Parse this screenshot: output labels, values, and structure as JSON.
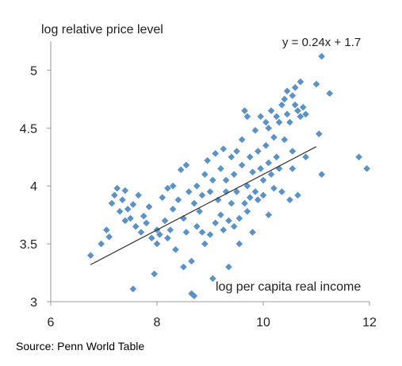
{
  "chart_data": {
    "type": "scatter",
    "ylabel": "log relative price level",
    "xlabel": "log per capita real income",
    "equation": "y = 0.24x + 1.7",
    "source": "Source: Penn World Table",
    "xlim": [
      6,
      12
    ],
    "ylim": [
      3,
      5.25
    ],
    "x_ticks": [
      6,
      8,
      10,
      12
    ],
    "x_tick_labels": [
      "6",
      "8",
      "10",
      "12"
    ],
    "y_ticks": [
      3,
      3.5,
      4,
      4.5,
      5
    ],
    "y_tick_labels": [
      "3",
      "3.5",
      "4",
      "4.5",
      "5"
    ],
    "grid": false,
    "trendline": {
      "slope": 0.24,
      "intercept": 1.7,
      "x_range": [
        6.75,
        11.0
      ],
      "color": "#333333"
    },
    "marker_color": "#5a93c8",
    "points": [
      [
        6.75,
        3.4
      ],
      [
        6.95,
        3.5
      ],
      [
        7.05,
        3.62
      ],
      [
        7.1,
        3.56
      ],
      [
        7.15,
        3.85
      ],
      [
        7.2,
        3.92
      ],
      [
        7.25,
        3.98
      ],
      [
        7.3,
        3.78
      ],
      [
        7.35,
        3.88
      ],
      [
        7.4,
        3.7
      ],
      [
        7.4,
        3.96
      ],
      [
        7.45,
        3.8
      ],
      [
        7.5,
        3.72
      ],
      [
        7.55,
        3.84
      ],
      [
        7.55,
        3.11
      ],
      [
        7.6,
        3.65
      ],
      [
        7.65,
        3.92
      ],
      [
        7.7,
        3.6
      ],
      [
        7.75,
        3.74
      ],
      [
        7.8,
        3.68
      ],
      [
        7.85,
        3.82
      ],
      [
        7.9,
        3.55
      ],
      [
        7.95,
        3.24
      ],
      [
        8.0,
        3.62
      ],
      [
        8.0,
        3.5
      ],
      [
        8.05,
        3.58
      ],
      [
        8.1,
        3.9
      ],
      [
        8.15,
        3.7
      ],
      [
        8.2,
        3.98
      ],
      [
        8.2,
        3.55
      ],
      [
        8.25,
        3.62
      ],
      [
        8.3,
        3.8
      ],
      [
        8.3,
        4.0
      ],
      [
        8.35,
        3.45
      ],
      [
        8.4,
        3.88
      ],
      [
        8.45,
        4.14
      ],
      [
        8.5,
        3.72
      ],
      [
        8.5,
        3.3
      ],
      [
        8.55,
        4.18
      ],
      [
        8.55,
        3.6
      ],
      [
        8.6,
        3.95
      ],
      [
        8.65,
        3.35
      ],
      [
        8.65,
        3.07
      ],
      [
        8.7,
        3.85
      ],
      [
        8.7,
        3.05
      ],
      [
        8.75,
        3.65
      ],
      [
        8.75,
        4.0
      ],
      [
        8.8,
        3.78
      ],
      [
        8.85,
        3.6
      ],
      [
        8.85,
        3.92
      ],
      [
        8.9,
        4.1
      ],
      [
        8.9,
        3.5
      ],
      [
        8.95,
        4.22
      ],
      [
        9.0,
        3.95
      ],
      [
        9.0,
        3.58
      ],
      [
        9.05,
        4.05
      ],
      [
        9.05,
        3.2
      ],
      [
        9.1,
        3.68
      ],
      [
        9.1,
        4.28
      ],
      [
        9.15,
        3.88
      ],
      [
        9.2,
        4.15
      ],
      [
        9.2,
        3.75
      ],
      [
        9.25,
        3.62
      ],
      [
        9.25,
        4.32
      ],
      [
        9.3,
        3.95
      ],
      [
        9.3,
        4.05
      ],
      [
        9.35,
        3.7
      ],
      [
        9.35,
        3.3
      ],
      [
        9.4,
        4.25
      ],
      [
        9.4,
        3.85
      ],
      [
        9.45,
        4.1
      ],
      [
        9.45,
        3.65
      ],
      [
        9.5,
        3.95
      ],
      [
        9.5,
        4.3
      ],
      [
        9.55,
        3.72
      ],
      [
        9.55,
        3.5
      ],
      [
        9.6,
        4.18
      ],
      [
        9.6,
        4.4
      ],
      [
        9.65,
        3.85
      ],
      [
        9.65,
        4.65
      ],
      [
        9.7,
        4.0
      ],
      [
        9.7,
        3.78
      ],
      [
        9.75,
        4.25
      ],
      [
        9.75,
        3.9
      ],
      [
        9.8,
        3.6
      ],
      [
        9.8,
        4.12
      ],
      [
        9.85,
        4.48
      ],
      [
        9.85,
        3.95
      ],
      [
        9.9,
        3.88
      ],
      [
        9.9,
        4.3
      ],
      [
        9.95,
        4.15
      ],
      [
        9.95,
        4.6
      ],
      [
        10.0,
        4.05
      ],
      [
        10.0,
        3.92
      ],
      [
        10.05,
        4.55
      ],
      [
        10.05,
        4.35
      ],
      [
        10.1,
        4.2
      ],
      [
        10.1,
        3.75
      ],
      [
        10.15,
        4.65
      ],
      [
        10.15,
        4.1
      ],
      [
        10.2,
        4.42
      ],
      [
        10.2,
        3.98
      ],
      [
        10.25,
        4.6
      ],
      [
        10.25,
        4.25
      ],
      [
        10.3,
        4.55
      ],
      [
        10.3,
        4.15
      ],
      [
        10.35,
        4.7
      ],
      [
        10.35,
        3.95
      ],
      [
        10.4,
        4.4
      ],
      [
        10.4,
        4.75
      ],
      [
        10.45,
        4.62
      ],
      [
        10.45,
        4.82
      ],
      [
        10.5,
        4.55
      ],
      [
        10.5,
        3.88
      ],
      [
        10.55,
        4.78
      ],
      [
        10.55,
        4.3
      ],
      [
        10.6,
        4.7
      ],
      [
        10.6,
        4.85
      ],
      [
        10.65,
        4.65
      ],
      [
        10.65,
        3.92
      ],
      [
        10.7,
        4.9
      ],
      [
        10.7,
        4.6
      ],
      [
        10.75,
        4.68
      ],
      [
        10.8,
        4.62
      ],
      [
        10.8,
        4.25
      ],
      [
        11.0,
        4.88
      ],
      [
        11.05,
        4.45
      ],
      [
        11.1,
        5.12
      ],
      [
        11.1,
        4.1
      ],
      [
        11.25,
        4.8
      ],
      [
        11.8,
        4.25
      ],
      [
        11.95,
        4.15
      ],
      [
        10.1,
        4.5
      ],
      [
        9.7,
        4.6
      ],
      [
        10.55,
        4.15
      ]
    ]
  }
}
